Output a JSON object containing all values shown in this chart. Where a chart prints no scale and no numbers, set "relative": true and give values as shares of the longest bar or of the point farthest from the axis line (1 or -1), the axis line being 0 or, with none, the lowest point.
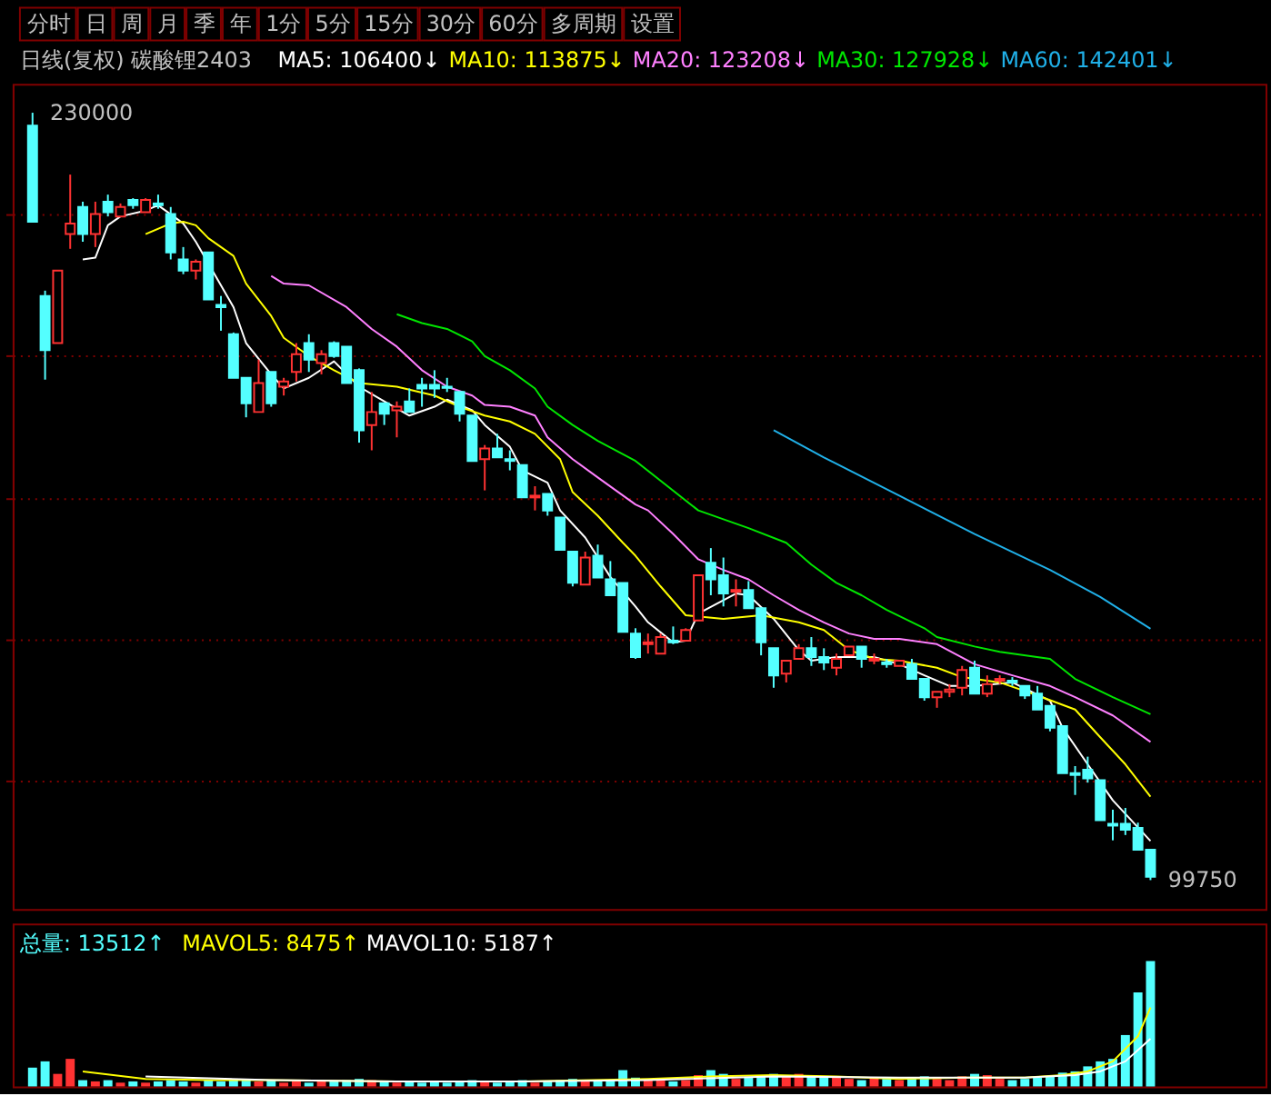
{
  "chart_data": [
    {
      "type": "candlestick",
      "title": "日线(复权) 碳酸锂2403",
      "annotations": [
        "分时",
        "日",
        "周",
        "月",
        "季",
        "年",
        "1分",
        "5分",
        "15分",
        "30分",
        "60分",
        "多周期",
        "设置",
        "230000",
        "99750"
      ],
      "categories": [
        null,
        null,
        null,
        null,
        null,
        null,
        null,
        null,
        null,
        null,
        null,
        null,
        null,
        null,
        null,
        null,
        null,
        null,
        null,
        null,
        null,
        null,
        null,
        null,
        null,
        null,
        null,
        null,
        null,
        null,
        null,
        null,
        null,
        null,
        null,
        null,
        null,
        null,
        null,
        null,
        null,
        null,
        null,
        null,
        null,
        null,
        null,
        null,
        null,
        null,
        null,
        null,
        null,
        null,
        null,
        null,
        null,
        null,
        null,
        null,
        null,
        null,
        null,
        null,
        null,
        null,
        null,
        null,
        null,
        null,
        null,
        null,
        null,
        null,
        null,
        null,
        null,
        null,
        null,
        null,
        null,
        null,
        null,
        null,
        null,
        null,
        null,
        null,
        null,
        null
      ],
      "ohlc": [
        [
          227800,
          230000,
          211500,
          211500
        ],
        [
          198900,
          199800,
          184700,
          189700
        ],
        [
          190900,
          203200,
          190900,
          203200
        ],
        [
          209400,
          219500,
          206900,
          211200
        ],
        [
          214000,
          214900,
          208100,
          209400
        ],
        [
          209400,
          214900,
          207200,
          212800
        ],
        [
          214900,
          216100,
          212400,
          213100
        ],
        [
          212400,
          214600,
          212400,
          214000
        ],
        [
          215200,
          215500,
          213700,
          214300
        ],
        [
          213100,
          215500,
          213100,
          215200
        ],
        [
          214600,
          216100,
          213700,
          214300
        ],
        [
          212800,
          214000,
          205100,
          206300
        ],
        [
          205100,
          207200,
          202600,
          203200
        ],
        [
          203200,
          205100,
          201700,
          204700
        ],
        [
          206300,
          206300,
          198300,
          198300
        ],
        [
          197400,
          198900,
          193000,
          197000
        ],
        [
          192400,
          192700,
          185000,
          185000
        ],
        [
          185000,
          185000,
          178300,
          180700
        ],
        [
          179200,
          188100,
          179200,
          184100
        ],
        [
          186000,
          186000,
          180100,
          180700
        ],
        [
          183500,
          185000,
          182000,
          184400
        ],
        [
          186000,
          190900,
          184400,
          189000
        ],
        [
          190900,
          192400,
          186000,
          188100
        ],
        [
          187500,
          189700,
          185600,
          189000
        ],
        [
          190900,
          191200,
          188400,
          188700
        ],
        [
          190300,
          190300,
          184100,
          184100
        ],
        [
          186300,
          186600,
          174000,
          176100
        ],
        [
          177000,
          182600,
          172700,
          179200
        ],
        [
          180700,
          180700,
          177000,
          178900
        ],
        [
          179500,
          181000,
          174900,
          180100
        ],
        [
          181000,
          183200,
          179200,
          179200
        ],
        [
          183800,
          185000,
          180100,
          183200
        ],
        [
          183800,
          186300,
          181600,
          183200
        ],
        [
          183500,
          185000,
          182600,
          183300
        ],
        [
          182600,
          182600,
          177600,
          178900
        ],
        [
          178600,
          178600,
          170900,
          170900
        ],
        [
          171200,
          173600,
          165900,
          173000
        ],
        [
          173000,
          175500,
          171500,
          171500
        ],
        [
          171200,
          172700,
          169300,
          170900
        ],
        [
          170200,
          170200,
          164700,
          164700
        ],
        [
          164700,
          166600,
          162500,
          165000
        ],
        [
          165300,
          165300,
          161600,
          162500
        ],
        [
          161300,
          161300,
          155800,
          155800
        ],
        [
          155500,
          155500,
          149600,
          150200
        ],
        [
          149900,
          155500,
          149900,
          154500
        ],
        [
          154800,
          156700,
          151100,
          151100
        ],
        [
          150800,
          153900,
          148100,
          148100
        ],
        [
          150200,
          150200,
          141900,
          141900
        ],
        [
          141600,
          142500,
          137300,
          137600
        ],
        [
          139800,
          141600,
          138200,
          140100
        ],
        [
          138200,
          141600,
          138200,
          141000
        ],
        [
          140400,
          142800,
          139800,
          140100
        ],
        [
          140400,
          142500,
          140400,
          142200
        ],
        [
          143800,
          151500,
          143800,
          151500
        ],
        [
          153600,
          156100,
          148100,
          150800
        ],
        [
          151500,
          154500,
          146200,
          148400
        ],
        [
          148700,
          150800,
          146200,
          149000
        ],
        [
          149000,
          150500,
          145900,
          145900
        ],
        [
          145900,
          145900,
          137900,
          140100
        ],
        [
          139100,
          139100,
          132400,
          134500
        ],
        [
          134800,
          137000,
          133300,
          137000
        ],
        [
          137300,
          139800,
          137300,
          139100
        ],
        [
          139100,
          141000,
          136100,
          137600
        ],
        [
          137600,
          139100,
          135400,
          136700
        ],
        [
          135800,
          138200,
          134500,
          137300
        ],
        [
          137900,
          139400,
          137900,
          139400
        ],
        [
          139400,
          139400,
          135800,
          137300
        ],
        [
          137000,
          138200,
          136400,
          137300
        ],
        [
          136700,
          137300,
          135800,
          136400
        ],
        [
          136100,
          137000,
          136100,
          137000
        ],
        [
          136400,
          137300,
          133900,
          133900
        ],
        [
          133900,
          133900,
          130200,
          130800
        ],
        [
          130800,
          131700,
          129000,
          131700
        ],
        [
          131700,
          133000,
          130800,
          132100
        ],
        [
          132400,
          136100,
          131100,
          135400
        ],
        [
          135800,
          137000,
          131400,
          131400
        ],
        [
          131400,
          134500,
          130800,
          133000
        ],
        [
          133600,
          134500,
          133000,
          133900
        ],
        [
          133600,
          134200,
          132700,
          133300
        ],
        [
          132700,
          132700,
          130500,
          131100
        ],
        [
          131400,
          132700,
          128700,
          128700
        ],
        [
          129300,
          129300,
          125000,
          125600
        ],
        [
          125900,
          125900,
          117900,
          117900
        ],
        [
          117900,
          119100,
          114200,
          117600
        ],
        [
          118500,
          120700,
          116300,
          117000
        ],
        [
          116700,
          116700,
          109900,
          109900
        ],
        [
          109300,
          111700,
          106500,
          109000
        ],
        [
          109300,
          112000,
          107400,
          108300
        ],
        [
          108600,
          109500,
          104900,
          104900
        ],
        [
          104900,
          104900,
          99750,
          100300
        ]
      ],
      "colors": [
        "#54ffff",
        "#54ffff",
        "#ff3232",
        "#ff3232",
        "#54ffff",
        "#ff3232",
        "#54ffff",
        "#ff3232",
        "#54ffff",
        "#ff3232",
        "#54ffff",
        "#54ffff",
        "#54ffff",
        "#ff3232",
        "#54ffff",
        "#54ffff",
        "#54ffff",
        "#54ffff",
        "#ff3232",
        "#54ffff",
        "#ff3232",
        "#ff3232",
        "#54ffff",
        "#ff3232",
        "#54ffff",
        "#54ffff",
        "#54ffff",
        "#ff3232",
        "#54ffff",
        "#ff3232",
        "#54ffff",
        "#54ffff",
        "#54ffff",
        "#54ffff",
        "#54ffff",
        "#54ffff",
        "#ff3232",
        "#54ffff",
        "#54ffff",
        "#54ffff",
        "#ff3232",
        "#54ffff",
        "#54ffff",
        "#54ffff",
        "#ff3232",
        "#54ffff",
        "#54ffff",
        "#54ffff",
        "#54ffff",
        "#ff3232",
        "#ff3232",
        "#54ffff",
        "#ff3232",
        "#ff3232",
        "#54ffff",
        "#54ffff",
        "#ff3232",
        "#54ffff",
        "#54ffff",
        "#54ffff",
        "#ff3232",
        "#ff3232",
        "#54ffff",
        "#54ffff",
        "#ff3232",
        "#ff3232",
        "#54ffff",
        "#ff3232",
        "#54ffff",
        "#ff3232",
        "#54ffff",
        "#54ffff",
        "#ff3232",
        "#ff3232",
        "#ff3232",
        "#54ffff",
        "#ff3232",
        "#ff3232",
        "#54ffff",
        "#54ffff",
        "#54ffff",
        "#54ffff",
        "#54ffff",
        "#54ffff",
        "#54ffff",
        "#54ffff",
        "#54ffff",
        "#54ffff",
        "#54ffff",
        "#54ffff"
      ],
      "series": [
        {
          "name": "MA5: 106400↓",
          "type": "line",
          "color": "#ffffff",
          "values": [
            null,
            null,
            null,
            null,
            205100,
            205400,
            210900,
            212400,
            null,
            213400,
            214300,
            null,
            211200,
            208100,
            null,
            null,
            197000,
            190900,
            null,
            185600,
            183200,
            null,
            185000,
            null,
            187800,
            null,
            183500,
            null,
            181000,
            null,
            178600,
            null,
            180100,
            181300,
            null,
            179500,
            177000,
            null,
            173300,
            169300,
            null,
            167200,
            162500,
            null,
            157900,
            null,
            151200,
            null,
            146200,
            143500,
            null,
            140100,
            140400,
            145000,
            null,
            null,
            148400,
            148100,
            null,
            144100,
            null,
            138800,
            137000,
            null,
            137600,
            null,
            null,
            137600,
            null,
            136400,
            null,
            134500,
            null,
            132700,
            null,
            132700,
            null,
            null,
            133300,
            null,
            null,
            130200,
            125600,
            null,
            119400,
            null,
            113300,
            null,
            null,
            106400
          ]
        },
        {
          "name": "MA10: 113875↓",
          "type": "line",
          "color": "#ffff00",
          "values": [
            null,
            null,
            null,
            null,
            null,
            null,
            null,
            null,
            null,
            209400,
            null,
            211200,
            211500,
            210900,
            208700,
            null,
            205700,
            201000,
            null,
            195500,
            191800,
            null,
            188700,
            null,
            186300,
            null,
            184100,
            null,
            null,
            183500,
            null,
            null,
            182000,
            null,
            180100,
            null,
            178600,
            null,
            177600,
            null,
            175500,
            null,
            171200,
            165600,
            null,
            161600,
            null,
            157000,
            154800,
            null,
            149600,
            null,
            144700,
            null,
            null,
            144100,
            null,
            null,
            144700,
            null,
            null,
            143500,
            null,
            142200,
            null,
            138800,
            null,
            137300,
            null,
            137000,
            null,
            null,
            135800,
            null,
            134200,
            null,
            null,
            133300,
            null,
            null,
            131100,
            null,
            null,
            128700,
            null,
            124000,
            null,
            119400,
            null,
            113900
          ]
        },
        {
          "name": "MA20: 123208↓",
          "type": "line",
          "color": "#ff80ff",
          "values": [
            null,
            null,
            null,
            null,
            null,
            null,
            null,
            null,
            null,
            null,
            null,
            null,
            null,
            null,
            null,
            null,
            null,
            null,
            null,
            202300,
            201000,
            null,
            200700,
            null,
            null,
            197000,
            null,
            193300,
            null,
            190300,
            null,
            186300,
            null,
            183500,
            null,
            182000,
            180400,
            null,
            180100,
            null,
            178600,
            174900,
            null,
            171200,
            null,
            168100,
            null,
            null,
            163500,
            162500,
            null,
            158500,
            null,
            154200,
            null,
            152400,
            null,
            150800,
            null,
            148100,
            null,
            145600,
            null,
            143500,
            null,
            141600,
            null,
            140700,
            null,
            140700,
            null,
            null,
            139800,
            null,
            null,
            136400,
            null,
            null,
            134500,
            null,
            null,
            132700,
            null,
            130800,
            null,
            null,
            127700,
            null,
            null,
            123200
          ]
        },
        {
          "name": "MA30: 127928↓",
          "type": "line",
          "color": "#00e600",
          "values": [
            null,
            null,
            null,
            null,
            null,
            null,
            null,
            null,
            null,
            null,
            null,
            null,
            null,
            null,
            null,
            null,
            null,
            null,
            null,
            null,
            null,
            null,
            null,
            null,
            null,
            null,
            null,
            null,
            null,
            195800,
            null,
            194300,
            null,
            193300,
            null,
            191200,
            188700,
            null,
            186300,
            null,
            183200,
            180100,
            null,
            177000,
            null,
            174300,
            null,
            null,
            170900,
            null,
            null,
            null,
            null,
            162500,
            null,
            null,
            null,
            159500,
            null,
            null,
            157000,
            null,
            153300,
            null,
            150200,
            null,
            148100,
            null,
            145600,
            null,
            null,
            142500,
            141000,
            null,
            null,
            139400,
            null,
            138500,
            null,
            null,
            null,
            137300,
            null,
            133900,
            null,
            null,
            130800,
            null,
            null,
            127900
          ]
        },
        {
          "name": "MA60: 142401↓",
          "type": "line",
          "color": "#20b0e8",
          "values": [
            null,
            null,
            null,
            null,
            null,
            null,
            null,
            null,
            null,
            null,
            null,
            null,
            null,
            null,
            null,
            null,
            null,
            null,
            null,
            null,
            null,
            null,
            null,
            null,
            null,
            null,
            null,
            null,
            null,
            null,
            null,
            null,
            null,
            null,
            null,
            null,
            null,
            null,
            null,
            null,
            null,
            null,
            null,
            null,
            null,
            null,
            null,
            null,
            null,
            null,
            null,
            null,
            null,
            null,
            null,
            null,
            null,
            null,
            null,
            176100,
            null,
            null,
            null,
            171500,
            null,
            null,
            null,
            null,
            null,
            165000,
            null,
            null,
            null,
            null,
            null,
            158500,
            null,
            null,
            null,
            null,
            null,
            152400,
            null,
            null,
            null,
            147800,
            null,
            null,
            null,
            142400
          ]
        }
      ],
      "yticks": [
        {
          "value": 212800,
          "label": null
        },
        {
          "value": 188700,
          "label": null
        },
        {
          "value": 164700,
          "label": null
        },
        {
          "value": 140700,
          "label": null
        },
        {
          "value": 116700,
          "label": null
        }
      ],
      "grid": "y",
      "tick_labels": false,
      "legend": "top"
    },
    {
      "type": "bar",
      "relative": true,
      "legend": "top left",
      "categories": [
        null,
        null,
        null,
        null,
        null,
        null,
        null,
        null,
        null,
        null,
        null,
        null,
        null,
        null,
        null,
        null,
        null,
        null,
        null,
        null,
        null,
        null,
        null,
        null,
        null,
        null,
        null,
        null,
        null,
        null,
        null,
        null,
        null,
        null,
        null,
        null,
        null,
        null,
        null,
        null,
        null,
        null,
        null,
        null,
        null,
        null,
        null,
        null,
        null,
        null,
        null,
        null,
        null,
        null,
        null,
        null,
        null,
        null,
        null,
        null,
        null,
        null,
        null,
        null,
        null,
        null,
        null,
        null,
        null,
        null,
        null,
        null,
        null,
        null,
        null,
        null,
        null,
        null,
        null,
        null,
        null,
        null,
        null,
        null,
        null,
        null,
        null,
        null,
        null,
        null
      ],
      "series": [
        {
          "name": "总量: 13512↑",
          "type": "bar",
          "colors": [
            "#54ffff",
            "#54ffff",
            "#ff3232",
            "#ff3232",
            "#54ffff",
            "#ff3232",
            "#54ffff",
            "#ff3232",
            "#54ffff",
            "#ff3232",
            "#54ffff",
            "#54ffff",
            "#54ffff",
            "#ff3232",
            "#54ffff",
            "#54ffff",
            "#54ffff",
            "#54ffff",
            "#ff3232",
            "#54ffff",
            "#ff3232",
            "#ff3232",
            "#54ffff",
            "#ff3232",
            "#54ffff",
            "#54ffff",
            "#54ffff",
            "#ff3232",
            "#54ffff",
            "#ff3232",
            "#54ffff",
            "#54ffff",
            "#54ffff",
            "#54ffff",
            "#54ffff",
            "#54ffff",
            "#ff3232",
            "#54ffff",
            "#54ffff",
            "#54ffff",
            "#ff3232",
            "#54ffff",
            "#54ffff",
            "#54ffff",
            "#ff3232",
            "#54ffff",
            "#54ffff",
            "#54ffff",
            "#54ffff",
            "#ff3232",
            "#ff3232",
            "#54ffff",
            "#ff3232",
            "#ff3232",
            "#54ffff",
            "#54ffff",
            "#ff3232",
            "#54ffff",
            "#54ffff",
            "#54ffff",
            "#ff3232",
            "#ff3232",
            "#54ffff",
            "#54ffff",
            "#ff3232",
            "#ff3232",
            "#54ffff",
            "#ff3232",
            "#54ffff",
            "#ff3232",
            "#54ffff",
            "#54ffff",
            "#ff3232",
            "#ff3232",
            "#ff3232",
            "#54ffff",
            "#ff3232",
            "#ff3232",
            "#54ffff",
            "#54ffff",
            "#54ffff",
            "#54ffff",
            "#54ffff",
            "#54ffff",
            "#54ffff",
            "#54ffff",
            "#54ffff",
            "#54ffff",
            "#54ffff",
            "#54ffff"
          ],
          "values": [
            0.15,
            0.2,
            0.1,
            0.22,
            0.05,
            0.04,
            0.05,
            0.03,
            0.04,
            0.03,
            0.04,
            0.05,
            0.04,
            0.03,
            0.05,
            0.04,
            0.06,
            0.05,
            0.04,
            0.05,
            0.03,
            0.04,
            0.03,
            0.04,
            0.04,
            0.05,
            0.06,
            0.05,
            0.04,
            0.03,
            0.04,
            0.03,
            0.04,
            0.03,
            0.04,
            0.05,
            0.04,
            0.03,
            0.04,
            0.05,
            0.03,
            0.04,
            0.05,
            0.06,
            0.05,
            0.04,
            0.05,
            0.13,
            0.07,
            0.05,
            0.06,
            0.04,
            0.05,
            0.09,
            0.13,
            0.1,
            0.06,
            0.07,
            0.08,
            0.1,
            0.09,
            0.1,
            0.08,
            0.07,
            0.08,
            0.06,
            0.05,
            0.07,
            0.06,
            0.05,
            0.07,
            0.08,
            0.06,
            0.05,
            0.08,
            0.1,
            0.09,
            0.06,
            0.05,
            0.06,
            0.07,
            0.08,
            0.11,
            0.12,
            0.16,
            0.2,
            0.22,
            0.41,
            0.75,
            1
          ]
        },
        {
          "name": "MAVOL5: 8475↑",
          "type": "line",
          "color": "#ffff00",
          "values": [
            null,
            null,
            null,
            null,
            0.12,
            null,
            null,
            null,
            null,
            0.06,
            null,
            null,
            null,
            null,
            0.05,
            null,
            null,
            null,
            null,
            0.05,
            null,
            null,
            null,
            null,
            null,
            null,
            null,
            null,
            null,
            0.04,
            null,
            null,
            null,
            null,
            null,
            null,
            null,
            null,
            null,
            0.04,
            null,
            null,
            null,
            null,
            null,
            null,
            null,
            null,
            null,
            0.06,
            null,
            null,
            null,
            null,
            0.08,
            null,
            null,
            null,
            null,
            0.09,
            null,
            null,
            null,
            null,
            0.08,
            null,
            null,
            null,
            null,
            0.06,
            null,
            null,
            null,
            null,
            0.07,
            null,
            null,
            null,
            null,
            0.07,
            null,
            null,
            0.09,
            null,
            0.12,
            null,
            0.2,
            null,
            0.4,
            0.63
          ]
        },
        {
          "name": "MAVOL10: 5187↑",
          "type": "line",
          "color": "#ffffff",
          "values": [
            null,
            null,
            null,
            null,
            null,
            null,
            null,
            null,
            null,
            0.08,
            null,
            null,
            null,
            null,
            null,
            null,
            null,
            null,
            null,
            0.05,
            null,
            null,
            null,
            null,
            null,
            null,
            null,
            null,
            null,
            0.04,
            null,
            null,
            null,
            null,
            null,
            null,
            null,
            null,
            null,
            0.04,
            null,
            null,
            null,
            null,
            null,
            null,
            null,
            null,
            null,
            0.05,
            null,
            null,
            null,
            null,
            null,
            null,
            null,
            null,
            null,
            0.08,
            null,
            null,
            null,
            null,
            null,
            null,
            null,
            null,
            null,
            0.07,
            null,
            null,
            null,
            null,
            null,
            null,
            null,
            null,
            null,
            0.07,
            null,
            null,
            null,
            0.09,
            null,
            0.12,
            null,
            0.2,
            null,
            0.38
          ]
        }
      ]
    }
  ]
}
